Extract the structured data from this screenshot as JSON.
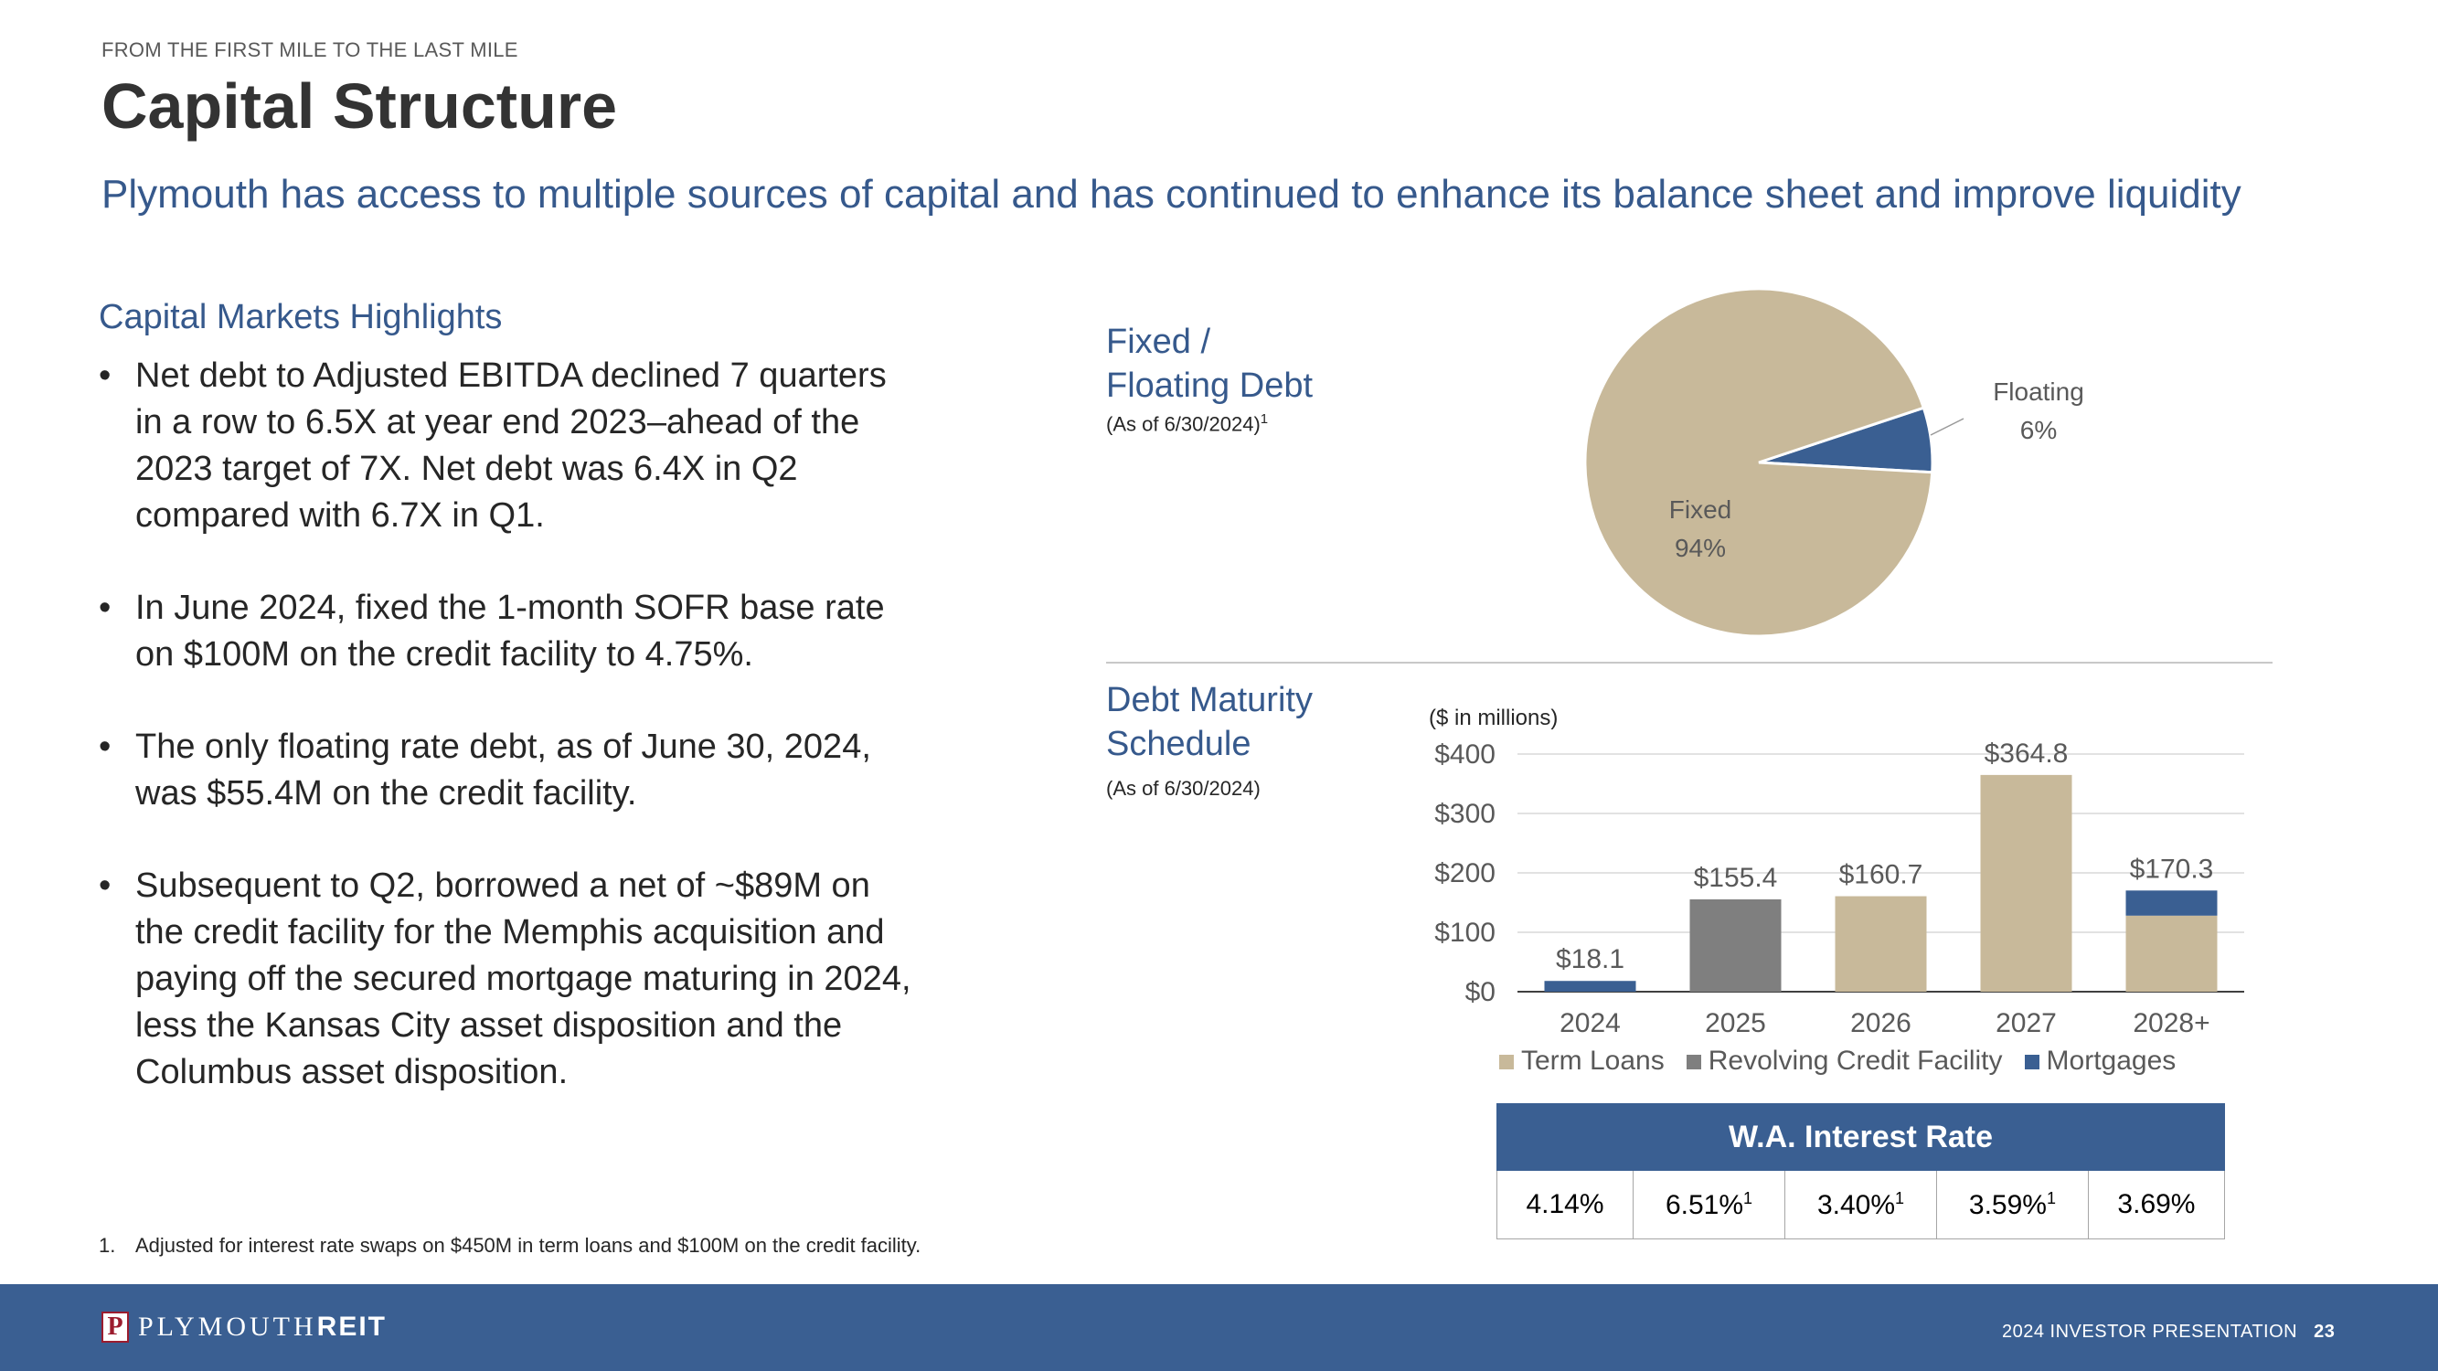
{
  "header": {
    "kicker": "FROM THE FIRST MILE TO THE LAST MILE",
    "title": "Capital Structure",
    "subtitle": "Plymouth has access to multiple sources of capital and has continued to enhance its balance sheet and improve liquidity"
  },
  "highlights": {
    "heading": "Capital Markets Highlights",
    "bullets": [
      "Net debt to Adjusted EBITDA declined 7 quarters in a row to 6.5X at year end 2023–ahead of the 2023 target of 7X. Net debt was 6.4X in Q2 compared with 6.7X in Q1.",
      "In June 2024, fixed the 1-month SOFR base rate on $100M on the credit facility to 4.75%.",
      "The only floating rate debt, as of June 30, 2024, was $55.4M on the credit facility.",
      "Subsequent to Q2, borrowed a net of ~$89M on the credit facility for the Memphis acquisition and paying off the secured mortgage maturing in 2024, less the Kansas City asset disposition and the Columbus asset disposition."
    ]
  },
  "footnote": {
    "number": "1.",
    "text": "Adjusted for interest rate swaps on $450M in term loans and $100M on the credit facility."
  },
  "fixed_floating": {
    "title_line1": "Fixed /",
    "title_line2": "Floating Debt",
    "as_of": "(As of 6/30/2024)",
    "as_of_sup": "1"
  },
  "maturity": {
    "title_line1": "Debt Maturity",
    "title_line2": "Schedule",
    "as_of": "(As of 6/30/2024)",
    "units": "($ in millions)"
  },
  "chart_data": [
    {
      "type": "pie",
      "title": "Fixed / Floating Debt",
      "slices": [
        {
          "label": "Fixed",
          "value": 94,
          "display": "94%",
          "color": "#c8b99a"
        },
        {
          "label": "Floating",
          "value": 6,
          "display": "6%",
          "color": "#3a5f92"
        }
      ]
    },
    {
      "type": "bar",
      "stacked": true,
      "title": "Debt Maturity Schedule",
      "ylabel": "($ in millions)",
      "categories": [
        "2024",
        "2025",
        "2026",
        "2027",
        "2028+"
      ],
      "series": [
        {
          "name": "Term Loans",
          "color": "#c8b99a",
          "values": [
            0,
            0,
            160.7,
            364.8,
            128
          ]
        },
        {
          "name": "Revolving Credit Facility",
          "color": "#7f7f7f",
          "values": [
            0,
            155.4,
            0,
            0,
            0
          ]
        },
        {
          "name": "Mortgages",
          "color": "#3a5f92",
          "values": [
            18.1,
            0,
            0,
            0,
            42.3
          ]
        }
      ],
      "totals": [
        "$18.1",
        "$155.4",
        "$160.7",
        "$364.8",
        "$170.3"
      ],
      "yticks": [
        0,
        100,
        200,
        300,
        400
      ],
      "ytick_labels": [
        "$0",
        "$100",
        "$200",
        "$300",
        "$400"
      ],
      "ylim": [
        0,
        400
      ],
      "legend_position": "bottom"
    }
  ],
  "interest_rate": {
    "header": "W.A. Interest  Rate",
    "cells": [
      {
        "value": "4.14%",
        "sup": ""
      },
      {
        "value": "6.51%",
        "sup": "1"
      },
      {
        "value": "3.40%",
        "sup": "1"
      },
      {
        "value": "3.59%",
        "sup": "1"
      },
      {
        "value": "3.69%",
        "sup": ""
      }
    ]
  },
  "footer": {
    "logo_mark": "P",
    "logo_word": "PLYMOUTH",
    "logo_word_bold": "REIT",
    "presentation": "2024 INVESTOR PRESENTATION",
    "page": "23"
  }
}
